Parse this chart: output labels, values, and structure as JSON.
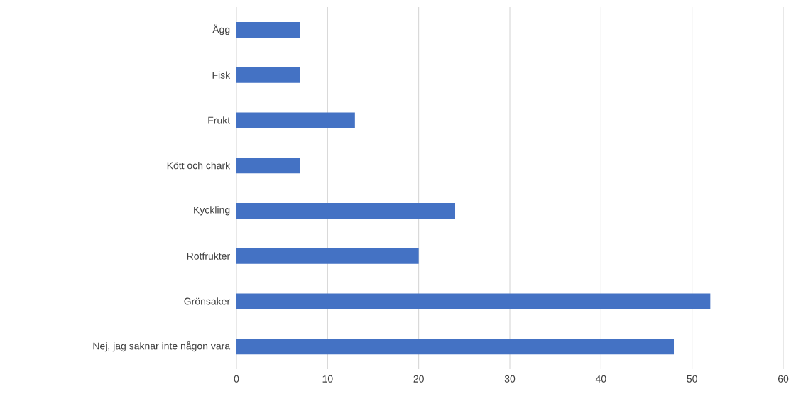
{
  "chart_data": {
    "type": "bar",
    "orientation": "horizontal",
    "categories": [
      "Ägg",
      "Fisk",
      "Frukt",
      "Kött och chark",
      "Kyckling",
      "Rotfrukter",
      "Grönsaker",
      "Nej, jag saknar inte någon vara"
    ],
    "values": [
      7,
      7,
      13,
      7,
      24,
      20,
      52,
      48
    ],
    "color": "#4472c4",
    "xlim": [
      0,
      60
    ],
    "xticks": [
      0,
      10,
      20,
      30,
      40,
      50,
      60
    ],
    "grid": "x"
  }
}
